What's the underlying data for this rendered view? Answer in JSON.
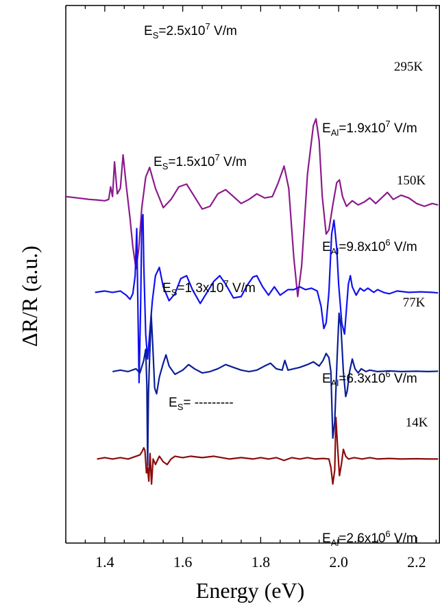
{
  "chart_data": {
    "type": "line",
    "xlabel": "Energy (eV)",
    "ylabel": "ΔR/R (a.u.)",
    "xlim": [
      1.3,
      2.26
    ],
    "x_ticks": [
      "1.4",
      "1.6",
      "1.8",
      "2.0",
      "2.2"
    ],
    "y_ticks_labeled": false,
    "series": [
      {
        "name": "295K",
        "color": "#8b1a8b",
        "baseline": 8.6,
        "es_label": {
          "prefix": "E",
          "sub": "S",
          "mid": "=2.5x10",
          "sup": "7",
          "suffix": " V/m"
        },
        "eal_label": {
          "prefix": "E",
          "sub": "Al",
          "mid": "=1.9x10",
          "sup": "7",
          "suffix": " V/m"
        },
        "points": [
          [
            1.3,
            0
          ],
          [
            1.33,
            -0.05
          ],
          [
            1.36,
            -0.1
          ],
          [
            1.38,
            -0.12
          ],
          [
            1.4,
            -0.15
          ],
          [
            1.41,
            -0.1
          ],
          [
            1.415,
            0.35
          ],
          [
            1.42,
            0.0
          ],
          [
            1.425,
            1.25
          ],
          [
            1.432,
            0.1
          ],
          [
            1.44,
            0.3
          ],
          [
            1.447,
            1.5
          ],
          [
            1.455,
            0.4
          ],
          [
            1.465,
            -0.8
          ],
          [
            1.472,
            -1.8
          ],
          [
            1.48,
            -2.6
          ],
          [
            1.487,
            -1.9
          ],
          [
            1.495,
            -0.4
          ],
          [
            1.505,
            0.7
          ],
          [
            1.515,
            1.05
          ],
          [
            1.53,
            0.3
          ],
          [
            1.55,
            -0.4
          ],
          [
            1.57,
            -0.1
          ],
          [
            1.59,
            0.35
          ],
          [
            1.61,
            0.45
          ],
          [
            1.63,
            0.0
          ],
          [
            1.65,
            -0.45
          ],
          [
            1.67,
            -0.35
          ],
          [
            1.69,
            0.1
          ],
          [
            1.71,
            0.25
          ],
          [
            1.73,
            0.0
          ],
          [
            1.75,
            -0.25
          ],
          [
            1.77,
            -0.1
          ],
          [
            1.79,
            0.1
          ],
          [
            1.81,
            -0.05
          ],
          [
            1.83,
            0.0
          ],
          [
            1.845,
            0.5
          ],
          [
            1.86,
            1.1
          ],
          [
            1.872,
            0.3
          ],
          [
            1.885,
            -2.2
          ],
          [
            1.895,
            -3.6
          ],
          [
            1.905,
            -2.5
          ],
          [
            1.92,
            0.8
          ],
          [
            1.935,
            2.55
          ],
          [
            1.942,
            2.8
          ],
          [
            1.95,
            2.0
          ],
          [
            1.958,
            0.0
          ],
          [
            1.968,
            -1.35
          ],
          [
            1.975,
            -1.2
          ],
          [
            1.985,
            -0.3
          ],
          [
            1.995,
            0.5
          ],
          [
            2.002,
            0.6
          ],
          [
            2.01,
            0.0
          ],
          [
            2.02,
            -0.35
          ],
          [
            2.035,
            -0.15
          ],
          [
            2.05,
            -0.3
          ],
          [
            2.065,
            -0.2
          ],
          [
            2.08,
            -0.05
          ],
          [
            2.095,
            -0.25
          ],
          [
            2.11,
            -0.05
          ],
          [
            2.125,
            0.15
          ],
          [
            2.14,
            -0.1
          ],
          [
            2.16,
            0.05
          ],
          [
            2.18,
            -0.05
          ],
          [
            2.2,
            -0.25
          ],
          [
            2.22,
            -0.35
          ],
          [
            2.24,
            -0.25
          ],
          [
            2.255,
            -0.3
          ]
        ]
      },
      {
        "name": "150K",
        "color": "#1010f0",
        "baseline": 5.15,
        "es_label": {
          "prefix": "E",
          "sub": "S",
          "mid": "=1.5x10",
          "sup": "7",
          "suffix": " V/m"
        },
        "eal_label": {
          "prefix": "E",
          "sub": "Al",
          "mid": "=9.8x10",
          "sup": "6",
          "suffix": " V/m"
        },
        "points": [
          [
            1.375,
            0
          ],
          [
            1.4,
            0.05
          ],
          [
            1.42,
            0.0
          ],
          [
            1.44,
            0.05
          ],
          [
            1.455,
            -0.1
          ],
          [
            1.465,
            -0.25
          ],
          [
            1.472,
            -0.05
          ],
          [
            1.478,
            0.6
          ],
          [
            1.482,
            2.3
          ],
          [
            1.485,
            -0.5
          ],
          [
            1.488,
            -3.25
          ],
          [
            1.492,
            -0.5
          ],
          [
            1.495,
            2.6
          ],
          [
            1.498,
            2.8
          ],
          [
            1.5,
            1.0
          ],
          [
            1.505,
            -1.5
          ],
          [
            1.51,
            -2.4
          ],
          [
            1.515,
            -1.5
          ],
          [
            1.522,
            -0.3
          ],
          [
            1.53,
            0.6
          ],
          [
            1.54,
            0.9
          ],
          [
            1.55,
            0.2
          ],
          [
            1.565,
            -0.3
          ],
          [
            1.58,
            -0.05
          ],
          [
            1.595,
            0.5
          ],
          [
            1.61,
            0.6
          ],
          [
            1.625,
            0.1
          ],
          [
            1.645,
            -0.4
          ],
          [
            1.66,
            -0.05
          ],
          [
            1.68,
            0.4
          ],
          [
            1.695,
            0.6
          ],
          [
            1.71,
            0.3
          ],
          [
            1.73,
            -0.2
          ],
          [
            1.75,
            -0.15
          ],
          [
            1.765,
            0.25
          ],
          [
            1.78,
            0.55
          ],
          [
            1.79,
            0.6
          ],
          [
            1.805,
            0.2
          ],
          [
            1.82,
            -0.1
          ],
          [
            1.835,
            0.2
          ],
          [
            1.85,
            -0.1
          ],
          [
            1.87,
            0.1
          ],
          [
            1.885,
            0.1
          ],
          [
            1.9,
            0.2
          ],
          [
            1.915,
            0.1
          ],
          [
            1.93,
            0.15
          ],
          [
            1.945,
            0.05
          ],
          [
            1.955,
            -0.5
          ],
          [
            1.962,
            -1.3
          ],
          [
            1.968,
            -1.1
          ],
          [
            1.975,
            0.0
          ],
          [
            1.982,
            2.1
          ],
          [
            1.988,
            2.6
          ],
          [
            1.995,
            1.6
          ],
          [
            2.0,
            0.3
          ],
          [
            2.008,
            -1.1
          ],
          [
            2.015,
            -1.5
          ],
          [
            2.02,
            -0.6
          ],
          [
            2.025,
            0.3
          ],
          [
            2.03,
            0.6
          ],
          [
            2.035,
            0.2
          ],
          [
            2.045,
            -0.1
          ],
          [
            2.055,
            0.15
          ],
          [
            2.065,
            0.05
          ],
          [
            2.075,
            0.15
          ],
          [
            2.09,
            0.0
          ],
          [
            2.1,
            0.1
          ],
          [
            2.115,
            0.0
          ],
          [
            2.13,
            -0.05
          ],
          [
            2.15,
            0.05
          ],
          [
            2.18,
            0.0
          ],
          [
            2.21,
            0.02
          ],
          [
            2.24,
            0.0
          ],
          [
            2.255,
            -0.02
          ]
        ]
      },
      {
        "name": "77K",
        "color": "#0a1e96",
        "baseline": 2.3,
        "es_label": {
          "prefix": "E",
          "sub": "S",
          "mid": "=1.3x10",
          "sup": "7",
          "suffix": " V/m"
        },
        "eal_label": {
          "prefix": "E",
          "sub": "Al",
          "mid": "=6.3x10",
          "sup": "6",
          "suffix": " V/m"
        },
        "points": [
          [
            1.42,
            0
          ],
          [
            1.44,
            0.05
          ],
          [
            1.46,
            0.0
          ],
          [
            1.48,
            0.1
          ],
          [
            1.49,
            -0.05
          ],
          [
            1.5,
            0.4
          ],
          [
            1.505,
            0.8
          ],
          [
            1.508,
            -0.5
          ],
          [
            1.51,
            -3.4
          ],
          [
            1.512,
            -0.8
          ],
          [
            1.515,
            0.5
          ],
          [
            1.519,
            2.05
          ],
          [
            1.523,
            1.0
          ],
          [
            1.528,
            -0.6
          ],
          [
            1.533,
            -0.8
          ],
          [
            1.54,
            -0.2
          ],
          [
            1.55,
            0.3
          ],
          [
            1.557,
            0.6
          ],
          [
            1.565,
            0.2
          ],
          [
            1.58,
            -0.1
          ],
          [
            1.6,
            0.05
          ],
          [
            1.615,
            0.25
          ],
          [
            1.63,
            0.1
          ],
          [
            1.65,
            -0.05
          ],
          [
            1.67,
            0.0
          ],
          [
            1.69,
            0.1
          ],
          [
            1.71,
            0.25
          ],
          [
            1.73,
            0.15
          ],
          [
            1.75,
            0.05
          ],
          [
            1.77,
            0.0
          ],
          [
            1.79,
            0.05
          ],
          [
            1.81,
            0.2
          ],
          [
            1.825,
            0.3
          ],
          [
            1.84,
            0.1
          ],
          [
            1.855,
            0.05
          ],
          [
            1.862,
            0.4
          ],
          [
            1.87,
            0.05
          ],
          [
            1.885,
            0.1
          ],
          [
            1.9,
            0.15
          ],
          [
            1.92,
            0.25
          ],
          [
            1.935,
            0.35
          ],
          [
            1.95,
            0.2
          ],
          [
            1.96,
            0.4
          ],
          [
            1.968,
            0.65
          ],
          [
            1.975,
            0.5
          ],
          [
            1.98,
            0.0
          ],
          [
            1.985,
            -2.4
          ],
          [
            1.99,
            -1.8
          ],
          [
            1.996,
            0.5
          ],
          [
            2.001,
            2.1
          ],
          [
            2.006,
            1.6
          ],
          [
            2.012,
            0.0
          ],
          [
            2.018,
            -0.9
          ],
          [
            2.022,
            -0.7
          ],
          [
            2.028,
            0.0
          ],
          [
            2.035,
            0.45
          ],
          [
            2.042,
            0.1
          ],
          [
            2.05,
            -0.05
          ],
          [
            2.058,
            0.1
          ],
          [
            2.07,
            0.0
          ],
          [
            2.08,
            0.05
          ],
          [
            2.1,
            0.0
          ],
          [
            2.13,
            0.02
          ],
          [
            2.16,
            0.0
          ],
          [
            2.2,
            0.01
          ],
          [
            2.23,
            0.0
          ],
          [
            2.255,
            0.01
          ]
        ]
      },
      {
        "name": "14K",
        "color": "#8b0a0a",
        "baseline": -0.85,
        "es_label": {
          "prefix": "E",
          "sub": "S",
          "mid": "= ---------",
          "sup": "",
          "suffix": ""
        },
        "eal_label": {
          "prefix": "E",
          "sub": "Al",
          "mid": "=2.6x10",
          "sup": "6",
          "suffix": " V/m"
        },
        "points": [
          [
            1.38,
            0
          ],
          [
            1.4,
            0.05
          ],
          [
            1.42,
            0.0
          ],
          [
            1.44,
            0.05
          ],
          [
            1.46,
            0.0
          ],
          [
            1.48,
            0.1
          ],
          [
            1.49,
            0.15
          ],
          [
            1.495,
            0.25
          ],
          [
            1.5,
            0.4
          ],
          [
            1.503,
            0.3
          ],
          [
            1.507,
            -0.5
          ],
          [
            1.51,
            -0.3
          ],
          [
            1.513,
            -0.8
          ],
          [
            1.516,
            0.2
          ],
          [
            1.52,
            -0.9
          ],
          [
            1.524,
            0.0
          ],
          [
            1.53,
            -0.2
          ],
          [
            1.54,
            0.1
          ],
          [
            1.55,
            -0.1
          ],
          [
            1.56,
            -0.2
          ],
          [
            1.57,
            0.0
          ],
          [
            1.58,
            0.1
          ],
          [
            1.6,
            0.05
          ],
          [
            1.62,
            0.1
          ],
          [
            1.65,
            0.05
          ],
          [
            1.68,
            0.1
          ],
          [
            1.7,
            0.05
          ],
          [
            1.72,
            0.0
          ],
          [
            1.75,
            0.05
          ],
          [
            1.78,
            0.0
          ],
          [
            1.8,
            0.05
          ],
          [
            1.82,
            0.0
          ],
          [
            1.84,
            0.05
          ],
          [
            1.86,
            -0.05
          ],
          [
            1.88,
            0.05
          ],
          [
            1.9,
            0.0
          ],
          [
            1.92,
            0.05
          ],
          [
            1.94,
            0.0
          ],
          [
            1.96,
            0.02
          ],
          [
            1.975,
            0.0
          ],
          [
            1.98,
            -0.3
          ],
          [
            1.985,
            -0.9
          ],
          [
            1.99,
            -0.4
          ],
          [
            1.993,
            1.5
          ],
          [
            1.997,
            0.5
          ],
          [
            2.002,
            -0.6
          ],
          [
            2.007,
            -0.2
          ],
          [
            2.012,
            0.35
          ],
          [
            2.018,
            0.1
          ],
          [
            2.025,
            0.0
          ],
          [
            2.04,
            0.05
          ],
          [
            2.06,
            0.0
          ],
          [
            2.08,
            0.05
          ],
          [
            2.1,
            0.0
          ],
          [
            2.13,
            0.02
          ],
          [
            2.16,
            0.0
          ],
          [
            2.2,
            0.01
          ],
          [
            2.23,
            0.0
          ],
          [
            2.255,
            0.0
          ]
        ]
      }
    ]
  }
}
